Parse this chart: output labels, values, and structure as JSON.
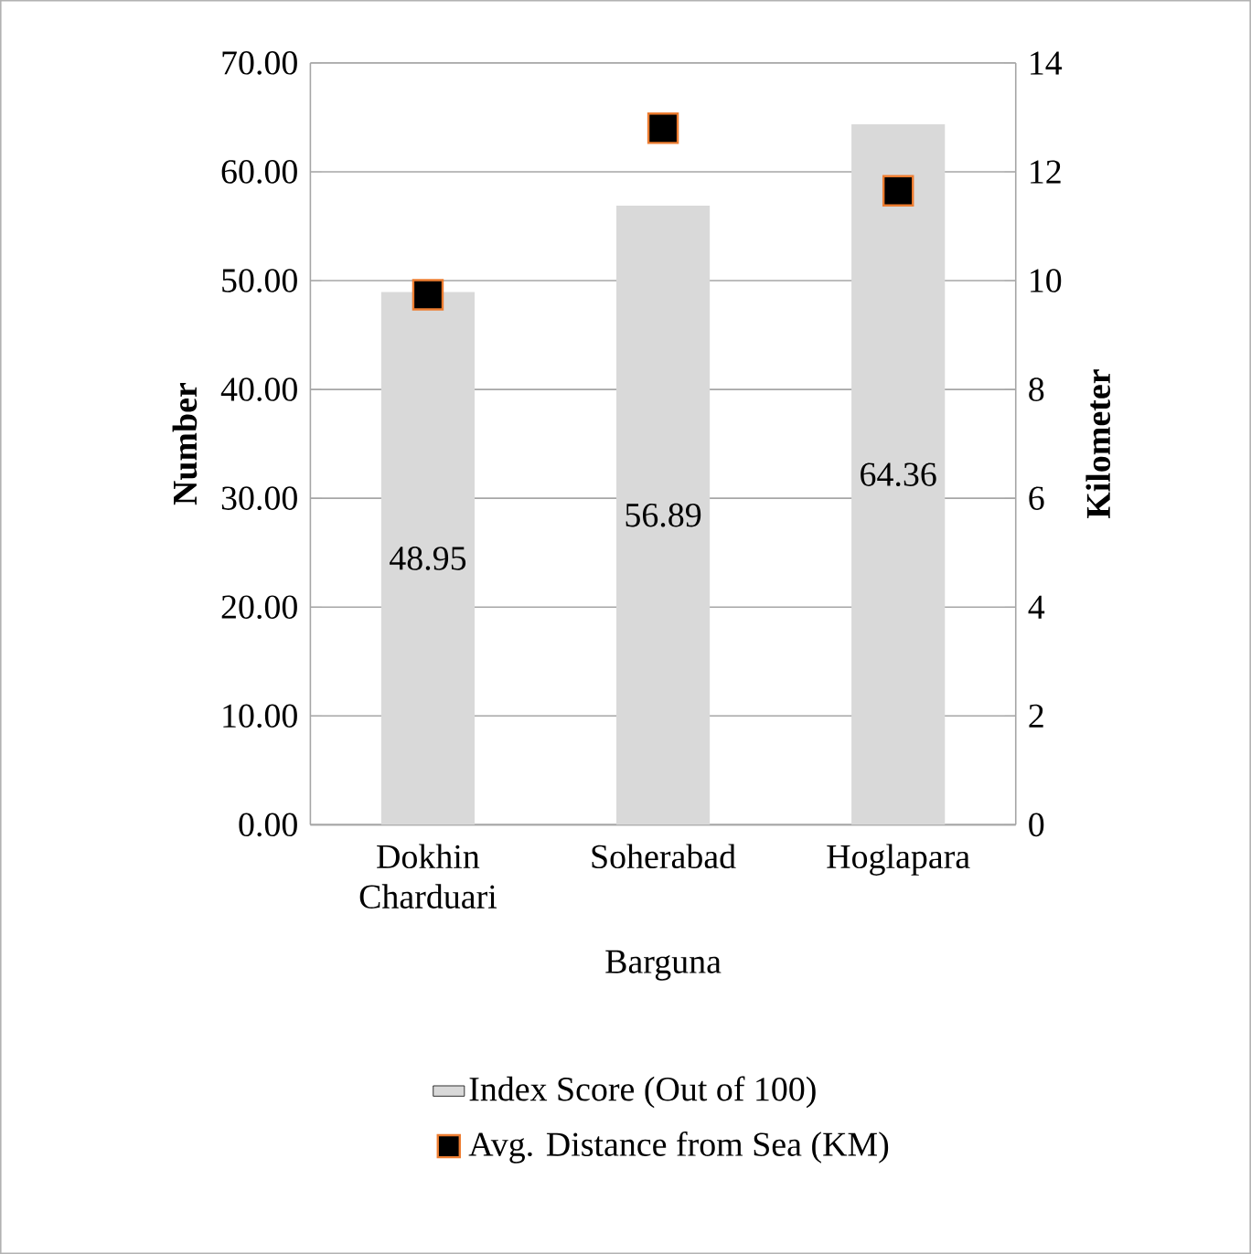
{
  "chart_data": {
    "type": "bar",
    "xlabel": "Barguna",
    "ylabel": "Number",
    "y2label": "Kilometer",
    "categories": [
      "Dokhin Charduari",
      "Soherabad",
      "Hoglapara"
    ],
    "series": [
      {
        "name": "Index Score (Out of 100)",
        "color": "#d9d9d9",
        "values": [
          48.95,
          56.89,
          64.36
        ],
        "data_labels": true
      },
      {
        "name": "Avg. Distance from Sea (KM)",
        "type": "scatter",
        "axis": "y2",
        "color": "#000000",
        "marker": "square",
        "values": [
          9.74,
          12.8,
          11.65
        ]
      }
    ],
    "ylim": [
      0,
      70
    ],
    "yticks": [
      {
        "value": 0,
        "label": "0.00"
      },
      {
        "value": 10,
        "label": "10.00"
      },
      {
        "value": 20,
        "label": "20.00"
      },
      {
        "value": 30,
        "label": "30.00"
      },
      {
        "value": 40,
        "label": "40.00"
      },
      {
        "value": 50,
        "label": "50.00"
      },
      {
        "value": 60,
        "label": "60.00"
      },
      {
        "value": 70,
        "label": "70.00"
      }
    ],
    "y2lim": [
      0,
      14
    ],
    "y2ticks": [
      0,
      2,
      4,
      6,
      8,
      10,
      12,
      14
    ],
    "grid": "y",
    "legend": "bottom"
  }
}
